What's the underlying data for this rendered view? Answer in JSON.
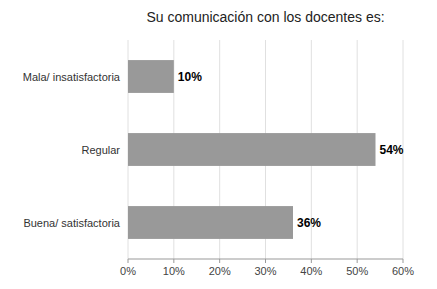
{
  "chart_data": {
    "type": "bar",
    "orientation": "horizontal",
    "title": "Su comunicación con los docentes es:",
    "categories": [
      "Buena/ satisfactoria",
      "Regular",
      "Mala/ insatisfactoria"
    ],
    "values": [
      36,
      54,
      10
    ],
    "value_labels": [
      "36%",
      "54%",
      "10%"
    ],
    "data_labels": true,
    "color": "#999999",
    "xlim": [
      0,
      60
    ],
    "xticks": [
      {
        "value": 0,
        "label": "0%"
      },
      {
        "value": 10,
        "label": "10%"
      },
      {
        "value": 20,
        "label": "20%"
      },
      {
        "value": 30,
        "label": "30%"
      },
      {
        "value": 40,
        "label": "40%"
      },
      {
        "value": 50,
        "label": "50%"
      },
      {
        "value": 60,
        "label": "60%"
      }
    ],
    "grid": true
  }
}
